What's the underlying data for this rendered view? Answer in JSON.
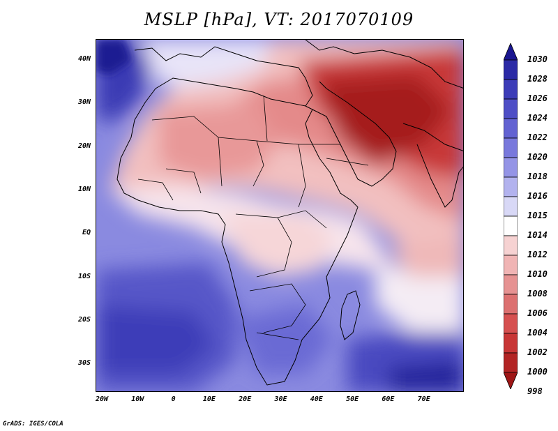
{
  "title": "MSLP [hPa], VT: 2017070109",
  "footer": "GrADS: IGES/COLA",
  "lat_ticks": [
    "40N",
    "30N",
    "20N",
    "10N",
    "EQ",
    "10S",
    "20S",
    "30S"
  ],
  "lon_ticks": [
    "20W",
    "10W",
    "0",
    "10E",
    "20E",
    "30E",
    "40E",
    "50E",
    "60E",
    "70E"
  ],
  "colorbar": {
    "labels": [
      "1030",
      "1028",
      "1026",
      "1024",
      "1022",
      "1020",
      "1018",
      "1016",
      "1015",
      "1014",
      "1012",
      "1010",
      "1008",
      "1006",
      "1004",
      "1002",
      "1000",
      "998"
    ],
    "colors": [
      "#1a1690",
      "#2b2aa6",
      "#3c3cb8",
      "#4e4ec6",
      "#6262d2",
      "#7878dc",
      "#9494e6",
      "#b2b2ee",
      "#d8d8f6",
      "#ffffff",
      "#f6d2d2",
      "#f0b4b4",
      "#e69292",
      "#dc7070",
      "#d65050",
      "#c83636",
      "#b22424",
      "#9e1616"
    ]
  }
}
